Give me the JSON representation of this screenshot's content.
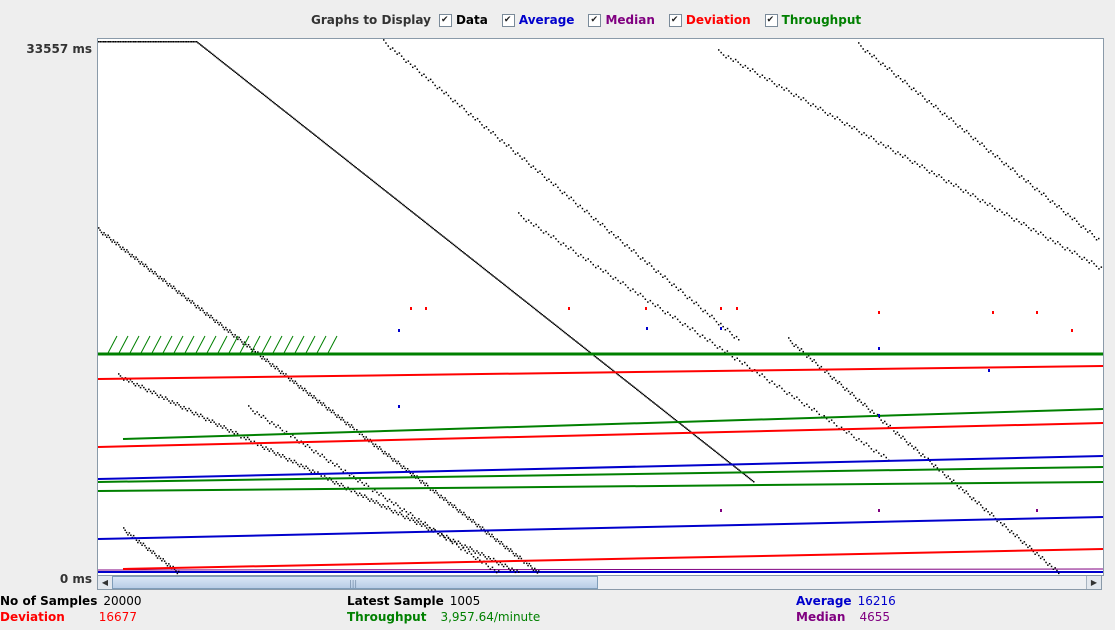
{
  "legend": {
    "label": "Graphs to Display",
    "items": [
      {
        "label": "Data",
        "color": "#000000",
        "checked": true
      },
      {
        "label": "Average",
        "color": "#0000cc",
        "checked": true
      },
      {
        "label": "Median",
        "color": "#800080",
        "checked": true
      },
      {
        "label": "Deviation",
        "color": "#ff0000",
        "checked": true
      },
      {
        "label": "Throughput",
        "color": "#008000",
        "checked": true
      }
    ]
  },
  "axis": {
    "y_max": "33557  ms",
    "y_min": "0  ms"
  },
  "stats": {
    "samples_label": "No of Samples",
    "samples_value": "20000",
    "deviation_label": "Deviation",
    "deviation_value": "16677",
    "latest_label": "Latest Sample",
    "latest_value": "1005",
    "throughput_label": "Throughput",
    "throughput_value": "3,957.64/minute",
    "average_label": "Average",
    "average_value": "16216",
    "median_label": "Median",
    "median_value": "4655"
  },
  "colors": {
    "data": "#000000",
    "average": "#0000cc",
    "median": "#800080",
    "deviation": "#ff0000",
    "throughput": "#008000"
  }
}
